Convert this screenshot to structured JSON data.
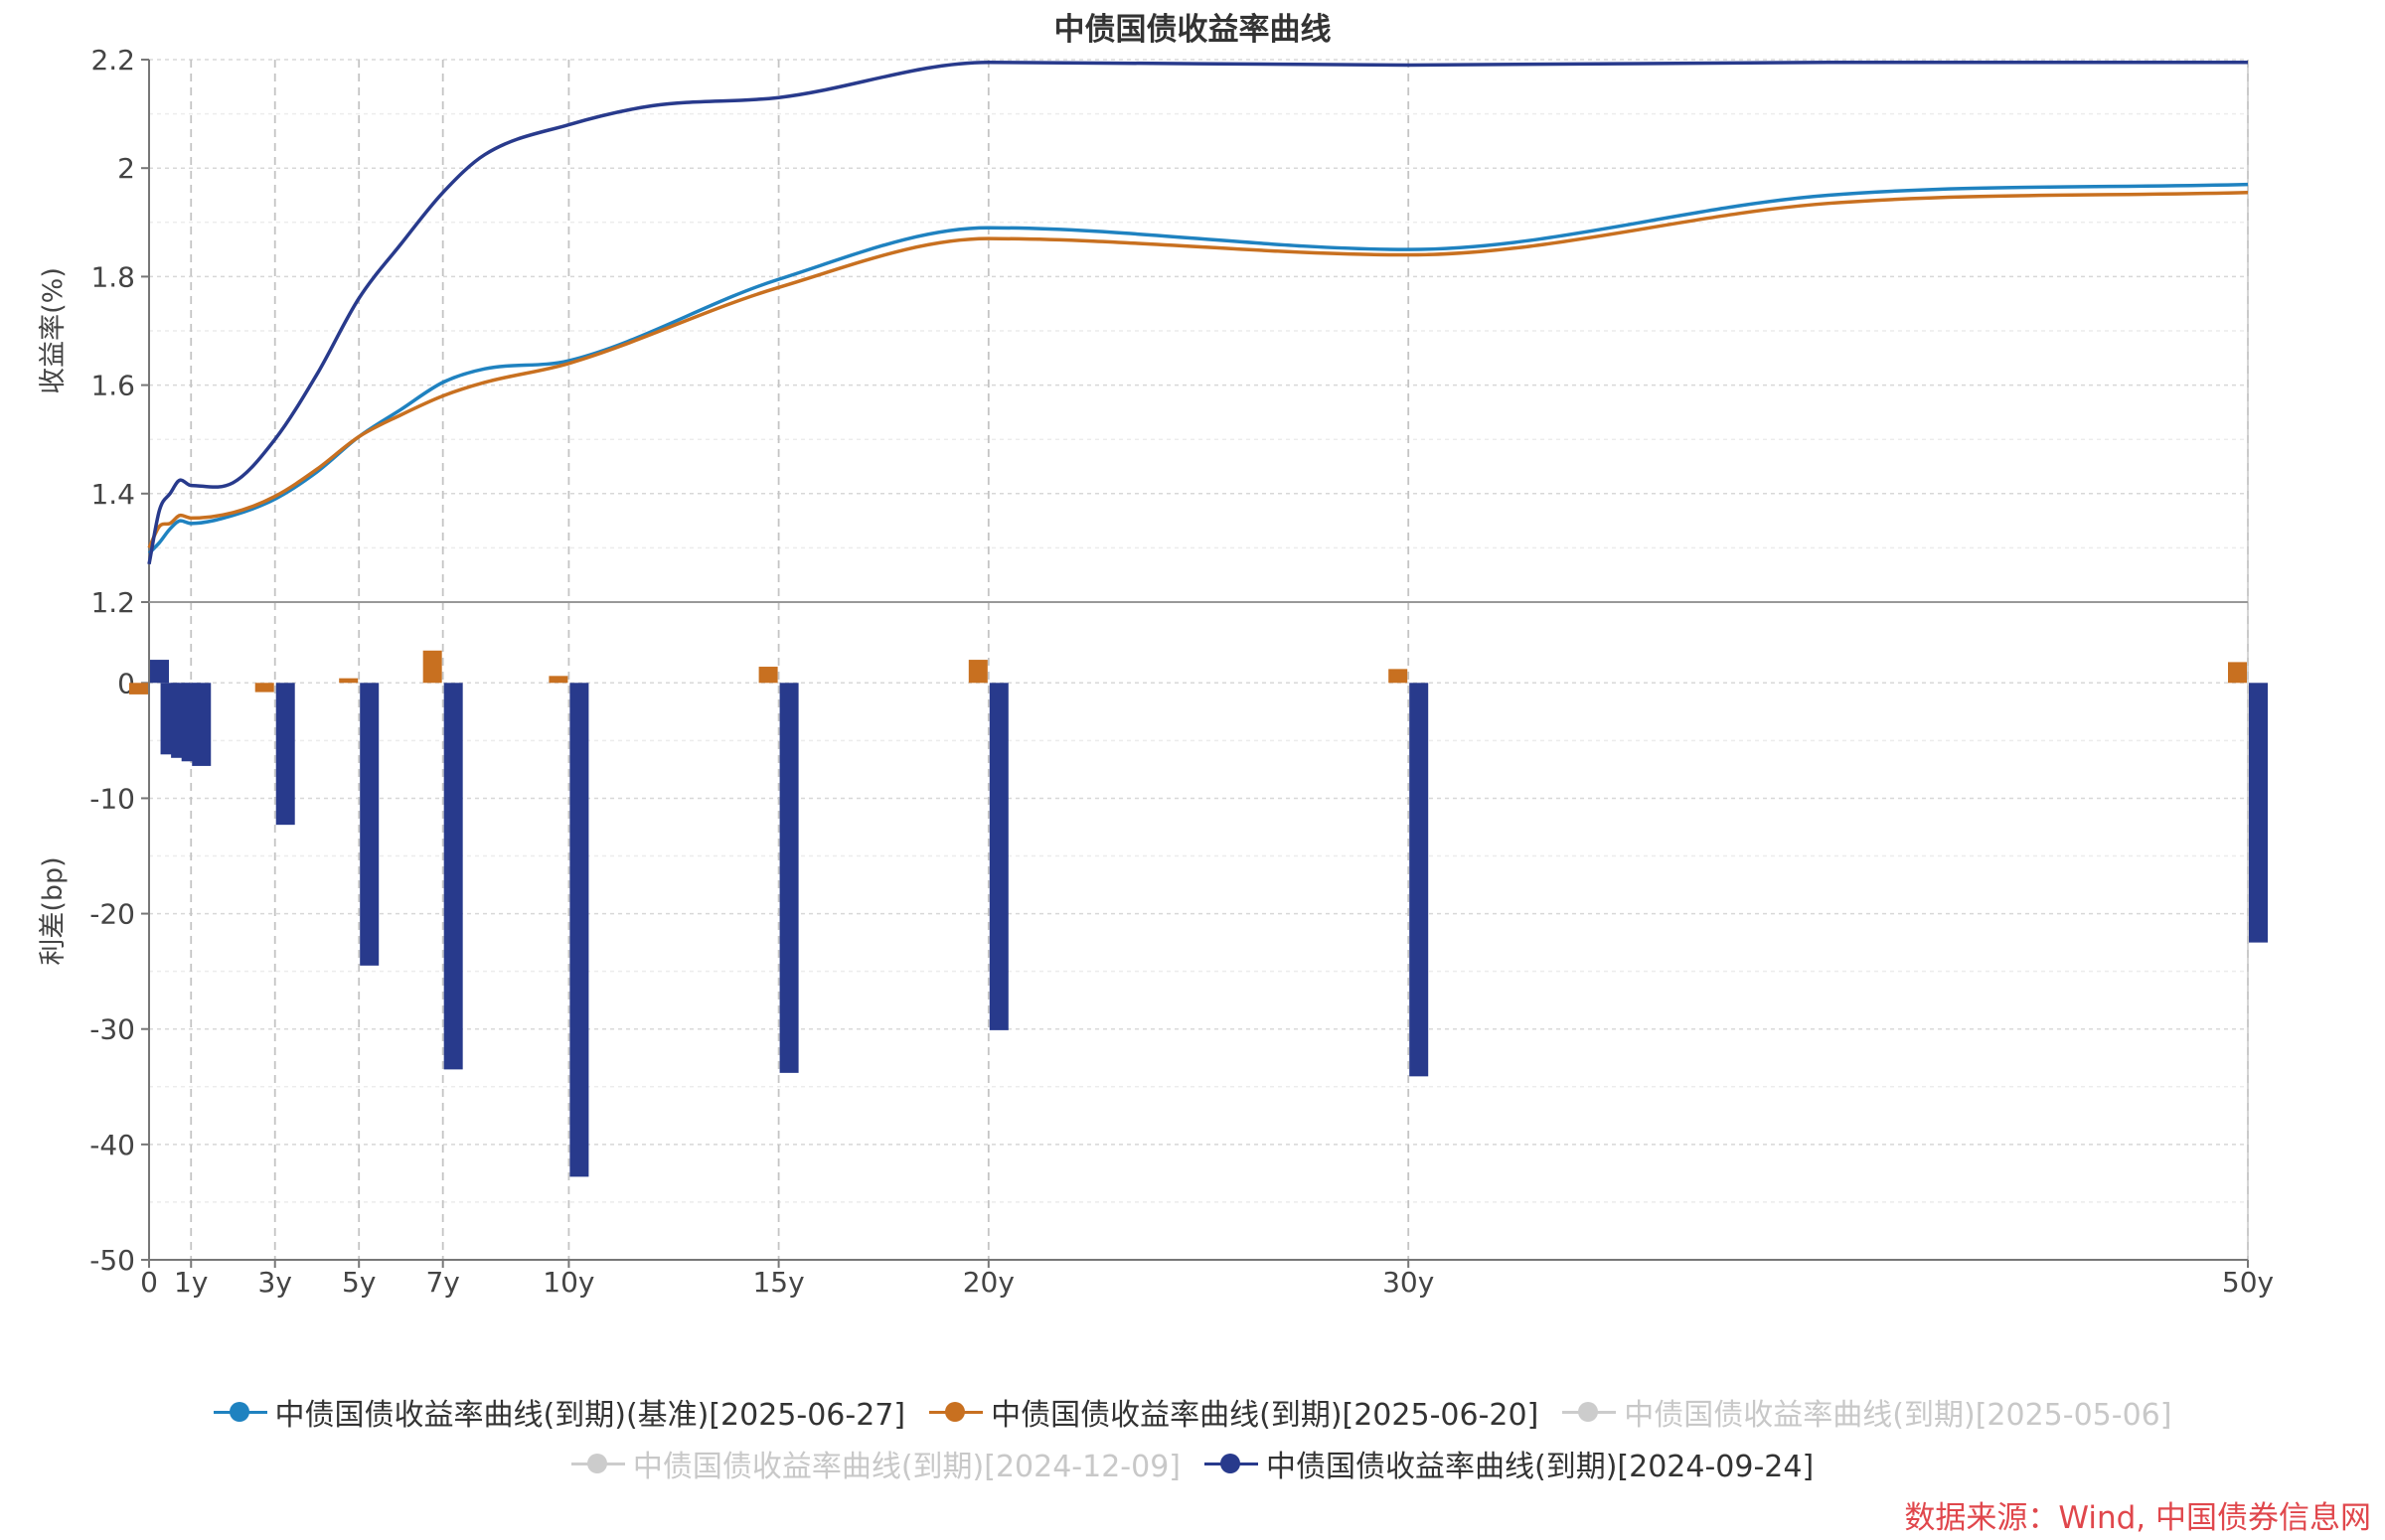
{
  "chart_data": {
    "type": "line",
    "title": "中债国债收益率曲线",
    "x_ticks": [
      {
        "x": 0,
        "label": "0"
      },
      {
        "x": 1,
        "label": "1y"
      },
      {
        "x": 3,
        "label": "3y"
      },
      {
        "x": 5,
        "label": "5y"
      },
      {
        "x": 7,
        "label": "7y"
      },
      {
        "x": 10,
        "label": "10y"
      },
      {
        "x": 15,
        "label": "15y"
      },
      {
        "x": 20,
        "label": "20y"
      },
      {
        "x": 30,
        "label": "30y"
      },
      {
        "x": 50,
        "label": "50y"
      }
    ],
    "xlim": [
      0,
      50
    ],
    "top_panel": {
      "ylabel": "收益率(%)",
      "ylim": [
        1.2,
        2.2
      ],
      "yticks": [
        1.2,
        1.4,
        1.6,
        1.8,
        2,
        2.2
      ],
      "series": [
        {
          "name": "中债国债收益率曲线(到期)(基准)[2025-06-27]",
          "color": "#1f82c0",
          "points": [
            [
              0,
              1.29
            ],
            [
              0.25,
              1.31
            ],
            [
              0.5,
              1.335
            ],
            [
              0.75,
              1.35
            ],
            [
              1,
              1.345
            ],
            [
              2,
              1.36
            ],
            [
              3,
              1.39
            ],
            [
              4,
              1.44
            ],
            [
              5,
              1.505
            ],
            [
              6,
              1.555
            ],
            [
              7,
              1.605
            ],
            [
              8,
              1.63
            ],
            [
              10,
              1.645
            ],
            [
              15,
              1.795
            ],
            [
              20,
              1.89
            ],
            [
              30,
              1.85
            ],
            [
              40,
              1.95
            ],
            [
              50,
              1.97
            ]
          ]
        },
        {
          "name": "中债国债收益率曲线(到期)[2025-06-20]",
          "color": "#c87020",
          "points": [
            [
              0,
              1.3
            ],
            [
              0.25,
              1.34
            ],
            [
              0.5,
              1.345
            ],
            [
              0.75,
              1.36
            ],
            [
              1,
              1.355
            ],
            [
              2,
              1.365
            ],
            [
              3,
              1.395
            ],
            [
              4,
              1.445
            ],
            [
              5,
              1.505
            ],
            [
              6,
              1.545
            ],
            [
              7,
              1.58
            ],
            [
              8,
              1.605
            ],
            [
              10,
              1.64
            ],
            [
              15,
              1.78
            ],
            [
              20,
              1.87
            ],
            [
              30,
              1.84
            ],
            [
              40,
              1.935
            ],
            [
              50,
              1.955
            ]
          ]
        },
        {
          "name": "中债国债收益率曲线(到期)[2024-09-24]",
          "color": "#283a8c",
          "points": [
            [
              0,
              1.27
            ],
            [
              0.25,
              1.37
            ],
            [
              0.5,
              1.4
            ],
            [
              0.75,
              1.425
            ],
            [
              1,
              1.415
            ],
            [
              2,
              1.42
            ],
            [
              3,
              1.5
            ],
            [
              4,
              1.62
            ],
            [
              5,
              1.76
            ],
            [
              6,
              1.86
            ],
            [
              7,
              1.955
            ],
            [
              8,
              2.025
            ],
            [
              10,
              2.08
            ],
            [
              12,
              2.115
            ],
            [
              15,
              2.13
            ],
            [
              20,
              2.195
            ],
            [
              30,
              2.19
            ],
            [
              40,
              2.195
            ],
            [
              50,
              2.195
            ]
          ]
        }
      ]
    },
    "bottom_panel": {
      "ylabel": "利差(bp)",
      "ylim": [
        -50,
        7
      ],
      "yticks": [
        0,
        -10,
        -20,
        -30,
        -40,
        -50
      ],
      "series": [
        {
          "name": "中债国债收益率曲线(到期)[2025-06-20]",
          "color": "#c87020",
          "points": [
            [
              0,
              -1
            ],
            [
              3,
              -0.8
            ],
            [
              5,
              0.4
            ],
            [
              7,
              2.8
            ],
            [
              10,
              0.6
            ],
            [
              15,
              1.4
            ],
            [
              20,
              2
            ],
            [
              30,
              1.2
            ],
            [
              50,
              1.8
            ]
          ]
        },
        {
          "name": "中债国债收益率曲线(到期)[2024-09-24]",
          "color": "#283a8c",
          "points": [
            [
              0,
              2
            ],
            [
              0.25,
              -6.2
            ],
            [
              0.5,
              -6.5
            ],
            [
              0.75,
              -6.8
            ],
            [
              1,
              -7.2
            ],
            [
              3,
              -12.3
            ],
            [
              5,
              -24.5
            ],
            [
              7,
              -33.5
            ],
            [
              10,
              -42.8
            ],
            [
              15,
              -33.8
            ],
            [
              20,
              -30.1
            ],
            [
              30,
              -34.1
            ],
            [
              50,
              -22.5
            ]
          ]
        }
      ]
    },
    "grid": true
  },
  "legend": [
    [
      {
        "label": "中债国债收益率曲线(到期)(基准)[2025-06-27]",
        "color": "#1f82c0",
        "active": true
      },
      {
        "label": "中债国债收益率曲线(到期)[2025-06-20]",
        "color": "#c87020",
        "active": true
      },
      {
        "label": "中债国债收益率曲线(到期)[2025-05-06]",
        "color": "#cccccc",
        "active": false
      }
    ],
    [
      {
        "label": "中债国债收益率曲线(到期)[2024-12-09]",
        "color": "#cccccc",
        "active": false
      },
      {
        "label": "中债国债收益率曲线(到期)[2024-09-24]",
        "color": "#283a8c",
        "active": true
      }
    ]
  ],
  "source": "数据来源：Wind, 中国债券信息网"
}
